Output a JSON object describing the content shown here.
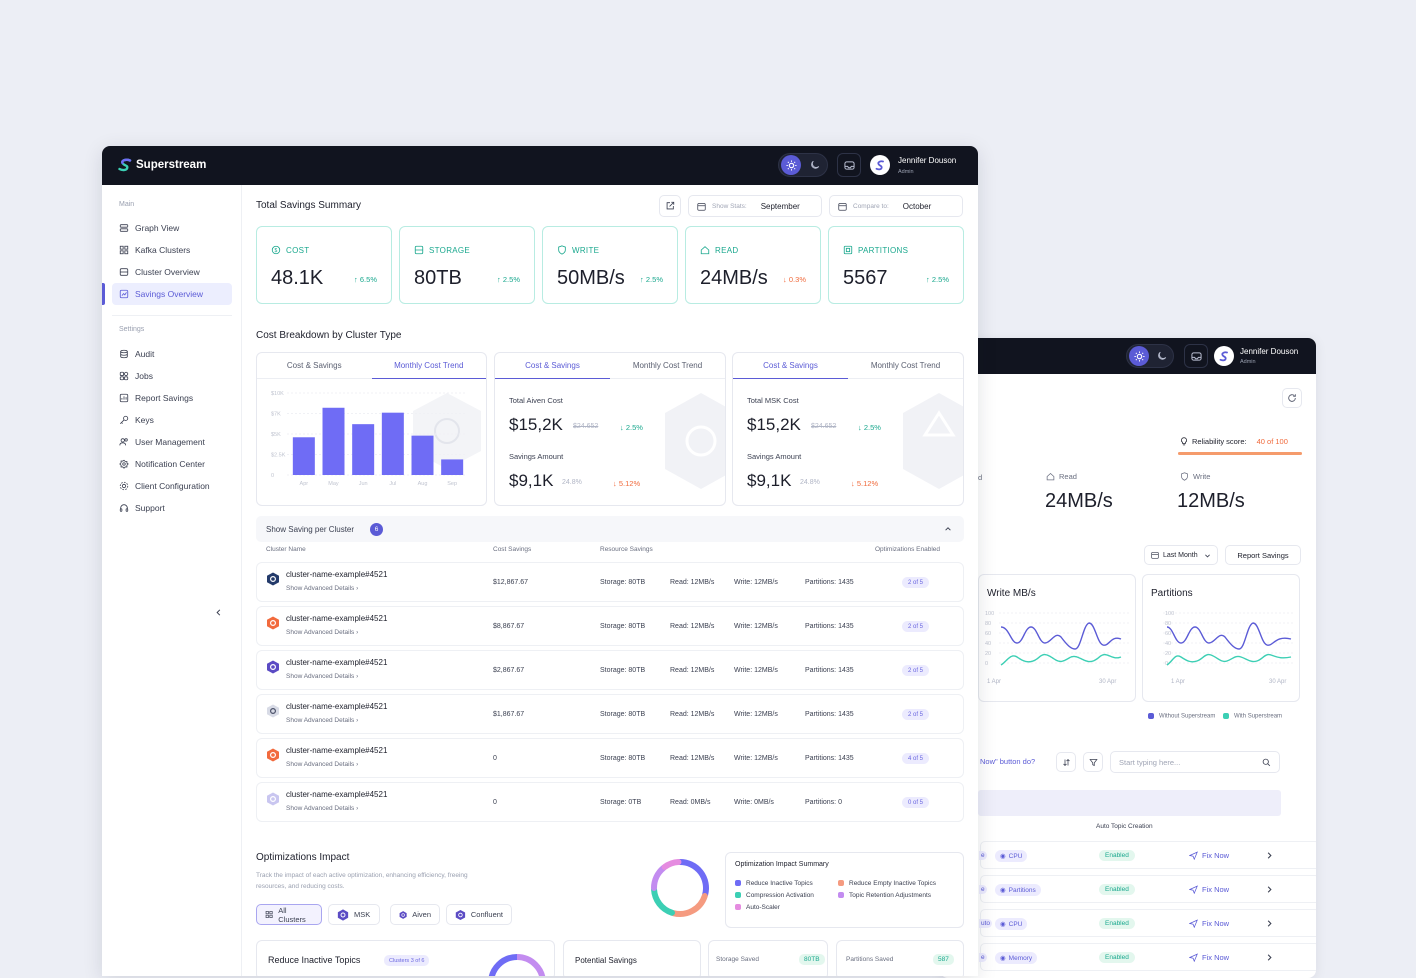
{
  "app": {
    "name": "Superstream"
  },
  "user": {
    "name": "Jennifer Douson",
    "role": "Admin"
  },
  "sidebar": {
    "main_label": "Main",
    "settings_label": "Settings",
    "main_items": [
      {
        "label": "Graph View",
        "icon": "layers-icon"
      },
      {
        "label": "Kafka Clusters",
        "icon": "grid-icon"
      },
      {
        "label": "Cluster Overview",
        "icon": "server-icon"
      },
      {
        "label": "Savings Overview",
        "icon": "chart-icon",
        "active": true
      }
    ],
    "settings_items": [
      {
        "label": "Audit",
        "icon": "database-icon"
      },
      {
        "label": "Jobs",
        "icon": "jobs-icon"
      },
      {
        "label": "Report Savings",
        "icon": "report-icon"
      },
      {
        "label": "Keys",
        "icon": "key-icon"
      },
      {
        "label": "User Management",
        "icon": "users-icon"
      },
      {
        "label": "Notification Center",
        "icon": "bell-icon"
      },
      {
        "label": "Client Configuration",
        "icon": "settings-icon"
      },
      {
        "label": "Support",
        "icon": "headset-icon"
      }
    ]
  },
  "summary": {
    "title": "Total Savings Summary",
    "show_stats_label": "Show Stats:",
    "show_stats_value": "September",
    "compare_label": "Compare to:",
    "compare_value": "October",
    "stats": [
      {
        "label": "COST",
        "value": "48.1K",
        "delta": "6.5%",
        "dir": "up"
      },
      {
        "label": "STORAGE",
        "value": "80TB",
        "delta": "2.5%",
        "dir": "up"
      },
      {
        "label": "WRITE",
        "value": "50MB/s",
        "delta": "2.5%",
        "dir": "up"
      },
      {
        "label": "READ",
        "value": "24MB/s",
        "delta": "0.3%",
        "dir": "down"
      },
      {
        "label": "PARTITIONS",
        "value": "5567",
        "delta": "2.5%",
        "dir": "up"
      }
    ]
  },
  "breakdown": {
    "title": "Cost Breakdown by Cluster Type",
    "tab_a": "Cost & Savings",
    "tab_b": "Monthly Cost Trend",
    "aiven": {
      "cost_label": "Total Aiven Cost",
      "cost": "$15,2K",
      "cost_old": "$24.652",
      "cost_delta": "2.5%",
      "savings_label": "Savings Amount",
      "savings": "$9,1K",
      "savings_pct": "24.8%",
      "savings_delta": "5.12%"
    },
    "msk": {
      "cost_label": "Total MSK Cost",
      "cost": "$15,2K",
      "cost_old": "$24.652",
      "cost_delta": "2.5%",
      "savings_label": "Savings Amount",
      "savings": "$9,1K",
      "savings_pct": "24.8%",
      "savings_delta": "5.12%"
    }
  },
  "chart_data": {
    "type": "bar",
    "categories": [
      "Apr",
      "May",
      "Jun",
      "Jul",
      "Aug",
      "Sep"
    ],
    "values": [
      4.6,
      8.2,
      6.2,
      7.6,
      4.8,
      1.9
    ],
    "ylim": [
      0,
      10
    ],
    "yticks": [
      "$10K",
      "$7K",
      "$5K",
      "$2.5K",
      "0"
    ],
    "color": "#6f6cf5",
    "grid": true
  },
  "clusters": {
    "title": "Show Saving per Cluster",
    "count": "6",
    "headers": {
      "name": "Cluster Name",
      "cost": "Cost Savings",
      "resource": "Resource Savings",
      "opt": "Optimizations Enabled"
    },
    "details_label": "Show Advanced Details",
    "rows": [
      {
        "name": "cluster-name-example#4521",
        "cost": "$12,867.67",
        "storage": "Storage: 80TB",
        "read": "Read: 12MB/s",
        "write": "Write: 12MB/s",
        "partitions": "Partitions: 1435",
        "opt": "2 of 5",
        "kind": "msk"
      },
      {
        "name": "cluster-name-example#4521",
        "cost": "$8,867.67",
        "storage": "Storage: 80TB",
        "read": "Read: 12MB/s",
        "write": "Write: 12MB/s",
        "partitions": "Partitions: 1435",
        "opt": "2 of 5",
        "kind": "aiven"
      },
      {
        "name": "cluster-name-example#4521",
        "cost": "$2,867.67",
        "storage": "Storage: 80TB",
        "read": "Read: 12MB/s",
        "write": "Write: 12MB/s",
        "partitions": "Partitions: 1435",
        "opt": "2 of 5",
        "kind": "kafka"
      },
      {
        "name": "cluster-name-example#4521",
        "cost": "$1,867.67",
        "storage": "Storage: 80TB",
        "read": "Read: 12MB/s",
        "write": "Write: 12MB/s",
        "partitions": "Partitions: 1435",
        "opt": "2 of 5",
        "kind": "confluent"
      },
      {
        "name": "cluster-name-example#4521",
        "cost": "0",
        "storage": "Storage: 80TB",
        "read": "Read: 12MB/s",
        "write": "Write: 12MB/s",
        "partitions": "Partitions: 1435",
        "opt": "4 of 5",
        "kind": "aiven"
      },
      {
        "name": "cluster-name-example#4521",
        "cost": "0",
        "storage": "Storage: 0TB",
        "read": "Read: 0MB/s",
        "write": "Write: 0MB/s",
        "partitions": "Partitions: 0",
        "opt": "0 of 5",
        "kind": "kafka-light"
      }
    ]
  },
  "optimizations": {
    "title": "Optimizations Impact",
    "desc": "Track the impact of each active optimization, enhancing efficiency, freeing resources, and reducing costs.",
    "filters": [
      "All Clusters",
      "MSK",
      "Aiven",
      "Confluent"
    ],
    "summary_title": "Optimization Impact Summary",
    "legend": [
      {
        "label": "Reduce Inactive Topics",
        "color": "#6f6cf5"
      },
      {
        "label": "Reduce Empty Inactive Topics",
        "color": "#f59b80"
      },
      {
        "label": "Compression Activation",
        "color": "#3ccfb4"
      },
      {
        "label": "Topic Retention Adjustments",
        "color": "#c38cf0"
      },
      {
        "label": "Auto-Scaler",
        "color": "#e58ce0"
      }
    ],
    "donut": [
      30,
      25,
      20,
      15,
      10
    ],
    "bottom": {
      "topic": "Reduce Inactive Topics",
      "topic_badge": "Clusters 3 of 6",
      "potential": "Potential Savings",
      "storage_label": "Storage Saved",
      "storage_value": "80TB",
      "partitions_label": "Partitions Saved",
      "partitions_value": "587"
    }
  },
  "back": {
    "reliability_label": "Reliability score:",
    "reliability_value": "40 of 100",
    "read_label": "Read",
    "read_value": "24MB/s",
    "write_label": "Write",
    "write_value": "12MB/s",
    "period": "Last Month",
    "report_btn": "Report Savings",
    "chart_write_title": "Write MB/s",
    "chart_part_title": "Partitions",
    "chart_yticks": [
      "100",
      "80",
      "60",
      "40",
      "20",
      "0"
    ],
    "chart_x_start": "1 Apr",
    "chart_x_end": "30 Apr",
    "legend_without": "Without Superstream",
    "legend_with": "With Superstream",
    "legend_without_color": "#5b5bd6",
    "legend_with_color": "#3ccfb4",
    "question": "Now\" button do?",
    "search_placeholder": "Start typing here...",
    "col_header": "Auto Topic Creation",
    "rows": [
      {
        "chip": "CPU",
        "status": "Enabled",
        "action": "Fix Now",
        "cut": "e"
      },
      {
        "chip": "Partitions",
        "status": "Enabled",
        "action": "Fix Now",
        "cut": "e"
      },
      {
        "chip": "CPU",
        "status": "Enabled",
        "action": "Fix Now",
        "cut": "uto"
      },
      {
        "chip": "Memory",
        "status": "Enabled",
        "action": "Fix Now",
        "cut": "e"
      }
    ],
    "d_cut": "d"
  }
}
